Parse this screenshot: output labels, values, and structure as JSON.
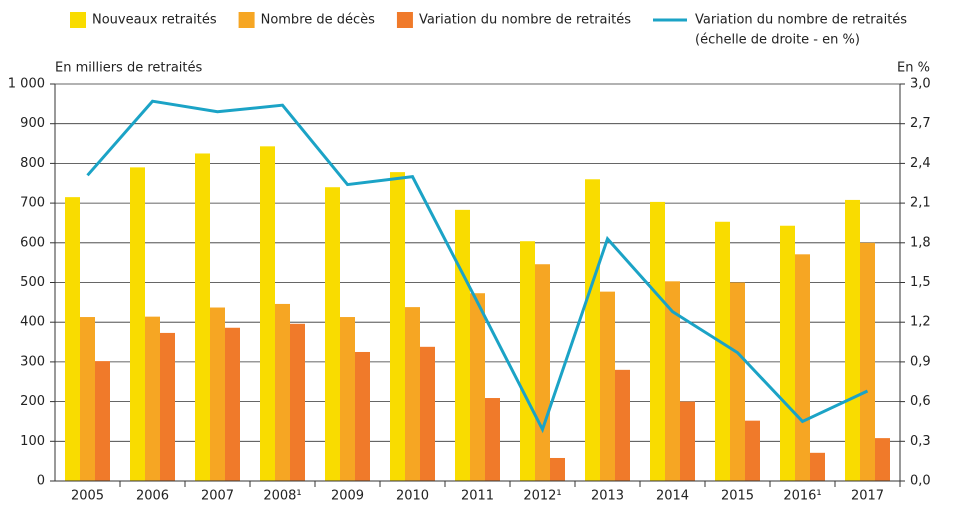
{
  "chart_data": {
    "type": "bar_line",
    "y_label": "En milliers de retraités",
    "y2_label": "En %",
    "legend_note": "(échelle de droite - en %)",
    "categories": [
      "2005",
      "2006",
      "2007",
      "2008¹",
      "2009",
      "2010",
      "2011",
      "2012¹",
      "2013",
      "2014",
      "2015",
      "2016¹",
      "2017"
    ],
    "series": [
      {
        "name": "Nouveaux retraités",
        "color": "#f9dc00",
        "type": "bar",
        "values": [
          715,
          790,
          825,
          843,
          740,
          778,
          683,
          604,
          760,
          703,
          653,
          643,
          708
        ]
      },
      {
        "name": "Nombre de décès",
        "color": "#f6a623",
        "type": "bar",
        "values": [
          413,
          414,
          437,
          446,
          413,
          438,
          473,
          546,
          477,
          503,
          500,
          571,
          600
        ]
      },
      {
        "name": "Variation du nombre de retraités",
        "color": "#f07a2a",
        "type": "bar",
        "values": [
          302,
          373,
          386,
          396,
          325,
          338,
          209,
          58,
          280,
          200,
          152,
          71,
          108
        ]
      },
      {
        "name": "Variation du nombre de retraités",
        "color": "#1ba3c6",
        "type": "line",
        "axis": "y2",
        "values": [
          2.31,
          2.87,
          2.79,
          2.84,
          2.24,
          2.3,
          1.35,
          0.39,
          1.83,
          1.28,
          0.97,
          0.45,
          0.68
        ]
      }
    ],
    "ylim": [
      0,
      1000
    ],
    "yticks": [
      0,
      100,
      200,
      300,
      400,
      500,
      600,
      700,
      800,
      900,
      {
        "value": 1000,
        "label": "1 000"
      }
    ],
    "y2lim": [
      0,
      3
    ],
    "y2ticks": [
      {
        "value": 0,
        "label": "0,0"
      },
      {
        "value": 0.3,
        "label": "0,3"
      },
      {
        "value": 0.6,
        "label": "0,6"
      },
      {
        "value": 0.9,
        "label": "0,9"
      },
      {
        "value": 1.2,
        "label": "1,2"
      },
      {
        "value": 1.5,
        "label": "1,5"
      },
      {
        "value": 1.8,
        "label": "1,8"
      },
      {
        "value": 2.1,
        "label": "2,1"
      },
      {
        "value": 2.4,
        "label": "2,4"
      },
      {
        "value": 2.7,
        "label": "2,7"
      },
      {
        "value": 3.0,
        "label": "3,0"
      }
    ],
    "grid": true
  }
}
